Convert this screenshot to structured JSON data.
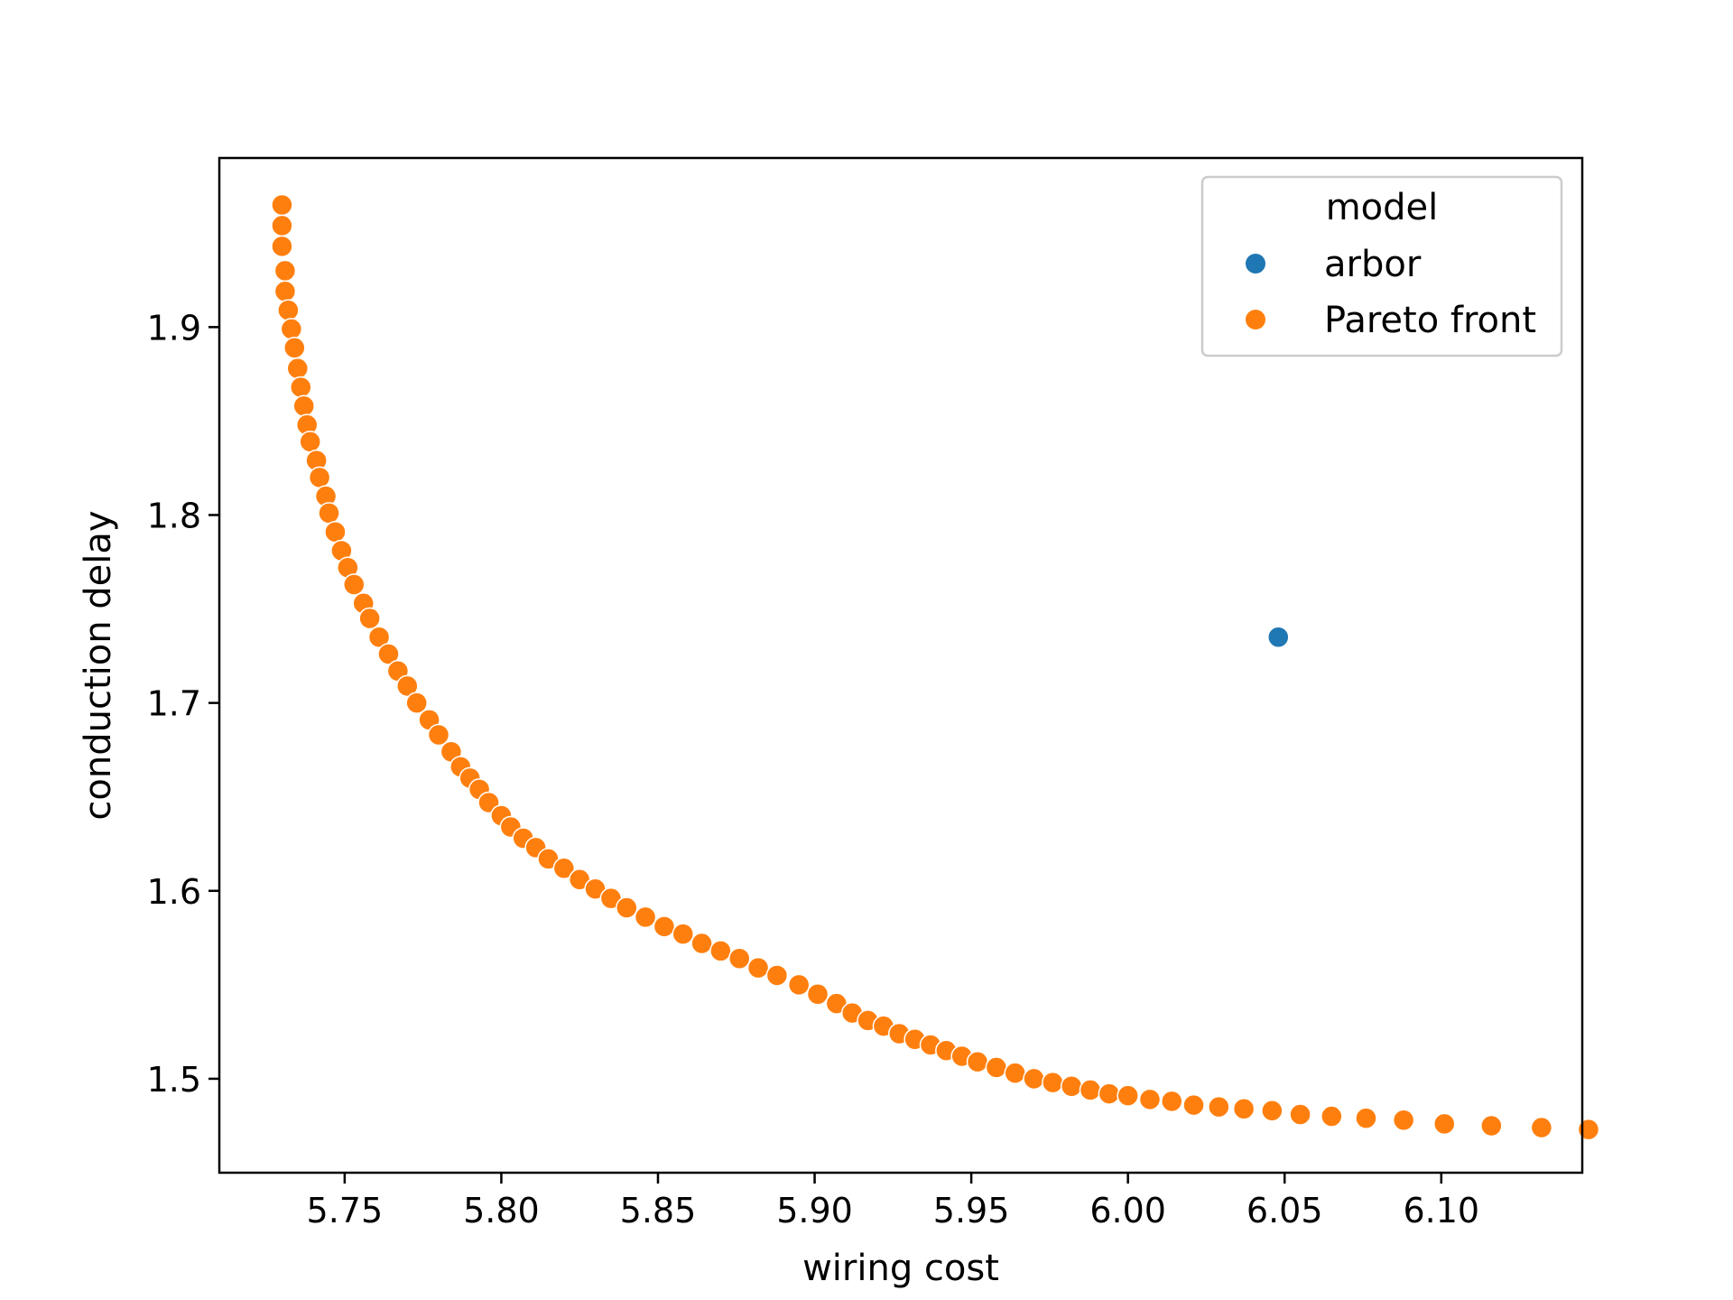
{
  "chart_data": {
    "type": "scatter",
    "title": "",
    "xlabel": "wiring cost",
    "ylabel": "conduction delay",
    "xlim": [
      5.71,
      6.145
    ],
    "ylim": [
      1.45,
      1.99
    ],
    "xticks": [
      5.75,
      5.8,
      5.85,
      5.9,
      5.95,
      6.0,
      6.05,
      6.1
    ],
    "xtick_labels": [
      "5.75",
      "5.80",
      "5.85",
      "5.90",
      "5.95",
      "6.00",
      "6.05",
      "6.10"
    ],
    "yticks": [
      1.5,
      1.6,
      1.7,
      1.8,
      1.9
    ],
    "ytick_labels": [
      "1.5",
      "1.6",
      "1.7",
      "1.8",
      "1.9"
    ],
    "grid": false,
    "legend": {
      "title": "model",
      "position": "top-right"
    },
    "series": [
      {
        "name": "arbor",
        "color": "#1f77b4",
        "points": [
          [
            6.048,
            1.735
          ]
        ]
      },
      {
        "name": "Pareto front",
        "color": "#ff7f0e",
        "points": [
          [
            5.73,
            1.965
          ],
          [
            5.73,
            1.954
          ],
          [
            5.73,
            1.943
          ],
          [
            5.731,
            1.93
          ],
          [
            5.731,
            1.919
          ],
          [
            5.732,
            1.909
          ],
          [
            5.733,
            1.899
          ],
          [
            5.734,
            1.889
          ],
          [
            5.735,
            1.878
          ],
          [
            5.736,
            1.868
          ],
          [
            5.737,
            1.858
          ],
          [
            5.738,
            1.848
          ],
          [
            5.739,
            1.839
          ],
          [
            5.741,
            1.829
          ],
          [
            5.742,
            1.82
          ],
          [
            5.744,
            1.81
          ],
          [
            5.745,
            1.801
          ],
          [
            5.747,
            1.791
          ],
          [
            5.749,
            1.781
          ],
          [
            5.751,
            1.772
          ],
          [
            5.753,
            1.763
          ],
          [
            5.756,
            1.753
          ],
          [
            5.758,
            1.745
          ],
          [
            5.761,
            1.735
          ],
          [
            5.764,
            1.726
          ],
          [
            5.767,
            1.717
          ],
          [
            5.77,
            1.709
          ],
          [
            5.773,
            1.7
          ],
          [
            5.777,
            1.691
          ],
          [
            5.78,
            1.683
          ],
          [
            5.784,
            1.674
          ],
          [
            5.787,
            1.666
          ],
          [
            5.79,
            1.66
          ],
          [
            5.793,
            1.654
          ],
          [
            5.796,
            1.647
          ],
          [
            5.8,
            1.64
          ],
          [
            5.803,
            1.634
          ],
          [
            5.807,
            1.628
          ],
          [
            5.811,
            1.623
          ],
          [
            5.815,
            1.617
          ],
          [
            5.82,
            1.612
          ],
          [
            5.825,
            1.606
          ],
          [
            5.83,
            1.601
          ],
          [
            5.835,
            1.596
          ],
          [
            5.84,
            1.591
          ],
          [
            5.846,
            1.586
          ],
          [
            5.852,
            1.581
          ],
          [
            5.858,
            1.577
          ],
          [
            5.864,
            1.572
          ],
          [
            5.87,
            1.568
          ],
          [
            5.876,
            1.564
          ],
          [
            5.882,
            1.559
          ],
          [
            5.888,
            1.555
          ],
          [
            5.895,
            1.55
          ],
          [
            5.901,
            1.545
          ],
          [
            5.907,
            1.54
          ],
          [
            5.912,
            1.535
          ],
          [
            5.917,
            1.531
          ],
          [
            5.922,
            1.528
          ],
          [
            5.927,
            1.524
          ],
          [
            5.932,
            1.521
          ],
          [
            5.937,
            1.518
          ],
          [
            5.942,
            1.515
          ],
          [
            5.947,
            1.512
          ],
          [
            5.952,
            1.509
          ],
          [
            5.958,
            1.506
          ],
          [
            5.964,
            1.503
          ],
          [
            5.97,
            1.5
          ],
          [
            5.976,
            1.498
          ],
          [
            5.982,
            1.496
          ],
          [
            5.988,
            1.494
          ],
          [
            5.994,
            1.492
          ],
          [
            6.0,
            1.491
          ],
          [
            6.007,
            1.489
          ],
          [
            6.014,
            1.488
          ],
          [
            6.021,
            1.486
          ],
          [
            6.029,
            1.485
          ],
          [
            6.037,
            1.484
          ],
          [
            6.046,
            1.483
          ],
          [
            6.055,
            1.481
          ],
          [
            6.065,
            1.48
          ],
          [
            6.076,
            1.479
          ],
          [
            6.088,
            1.478
          ],
          [
            6.101,
            1.476
          ],
          [
            6.116,
            1.475
          ],
          [
            6.132,
            1.474
          ],
          [
            6.147,
            1.473
          ]
        ]
      }
    ]
  }
}
